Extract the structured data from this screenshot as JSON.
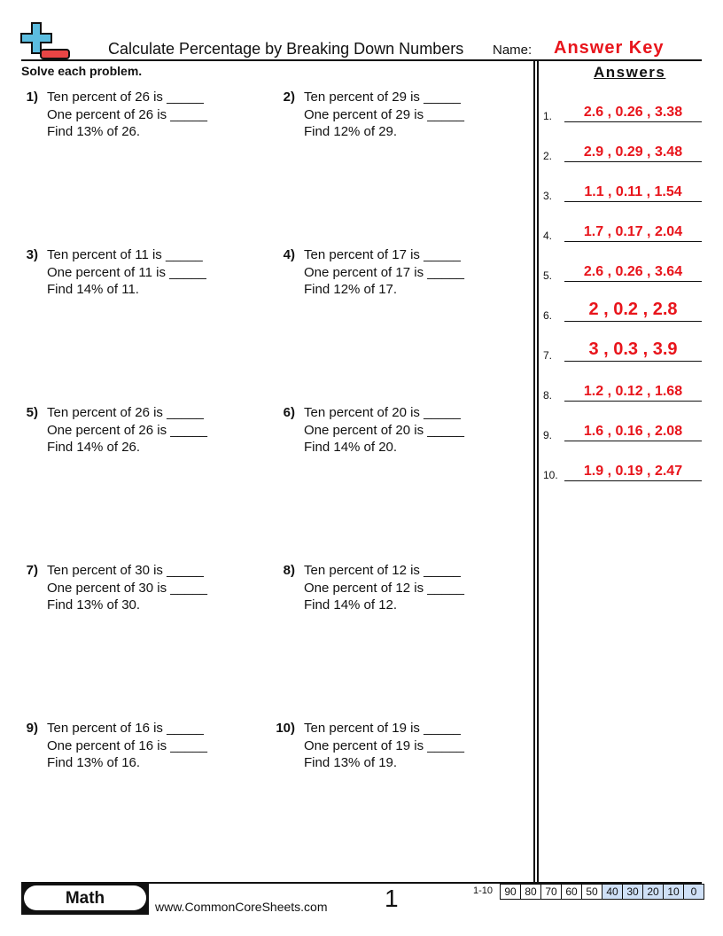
{
  "header": {
    "title": "Calculate Percentage by Breaking Down Numbers",
    "name_label": "Name:",
    "name_value": "Answer Key",
    "instructions": "Solve each problem.",
    "answers_heading": "Answers"
  },
  "logo": {
    "icon": "plus-minus-logo",
    "colors": {
      "plus": "#5bbde0",
      "minus": "#e84545"
    }
  },
  "problems": [
    {
      "num": "1)",
      "l1": "Ten percent of 26 is _____",
      "l2": "One percent of 26 is _____",
      "l3": "Find 13% of 26."
    },
    {
      "num": "2)",
      "l1": "Ten percent of 29 is _____",
      "l2": "One percent of 29 is _____",
      "l3": "Find 12% of 29."
    },
    {
      "num": "3)",
      "l1": "Ten percent of 11 is _____",
      "l2": "One percent of 11 is _____",
      "l3": "Find 14% of 11."
    },
    {
      "num": "4)",
      "l1": "Ten percent of 17 is _____",
      "l2": "One percent of 17 is _____",
      "l3": "Find 12% of 17."
    },
    {
      "num": "5)",
      "l1": "Ten percent of 26 is _____",
      "l2": "One percent of 26 is _____",
      "l3": "Find 14% of 26."
    },
    {
      "num": "6)",
      "l1": "Ten percent of 20 is _____",
      "l2": "One percent of 20 is _____",
      "l3": "Find 14% of 20."
    },
    {
      "num": "7)",
      "l1": "Ten percent of 30 is _____",
      "l2": "One percent of 30 is _____",
      "l3": "Find 13% of 30."
    },
    {
      "num": "8)",
      "l1": "Ten percent of 12 is _____",
      "l2": "One percent of 12 is _____",
      "l3": "Find 14% of 12."
    },
    {
      "num": "9)",
      "l1": "Ten percent of 16 is _____",
      "l2": "One percent of 16 is _____",
      "l3": "Find 13% of 16."
    },
    {
      "num": "10)",
      "l1": "Ten percent of 19 is _____",
      "l2": "One percent of 19 is _____",
      "l3": "Find 13% of 19."
    }
  ],
  "answers": [
    {
      "label": "1.",
      "value": "2.6 , 0.26 , 3.38"
    },
    {
      "label": "2.",
      "value": "2.9 , 0.29 , 3.48"
    },
    {
      "label": "3.",
      "value": "1.1 , 0.11 , 1.54"
    },
    {
      "label": "4.",
      "value": "1.7 , 0.17 , 2.04"
    },
    {
      "label": "5.",
      "value": "2.6 , 0.26 , 3.64"
    },
    {
      "label": "6.",
      "value": "2 , 0.2 , 2.8"
    },
    {
      "label": "7.",
      "value": "3 , 0.3 , 3.9"
    },
    {
      "label": "8.",
      "value": "1.2 , 0.12 , 1.68"
    },
    {
      "label": "9.",
      "value": "1.6 , 0.16 , 2.08"
    },
    {
      "label": "10.",
      "value": "1.9 , 0.19 , 2.47"
    }
  ],
  "footer": {
    "subject": "Math",
    "site": "www.CommonCoreSheets.com",
    "page": "1",
    "range": "1-10",
    "scores": [
      "90",
      "80",
      "70",
      "60",
      "50",
      "40",
      "30",
      "20",
      "10",
      "0"
    ]
  },
  "colors": {
    "answer": "#e8141b",
    "score_highlight": "#cfe0f7"
  }
}
